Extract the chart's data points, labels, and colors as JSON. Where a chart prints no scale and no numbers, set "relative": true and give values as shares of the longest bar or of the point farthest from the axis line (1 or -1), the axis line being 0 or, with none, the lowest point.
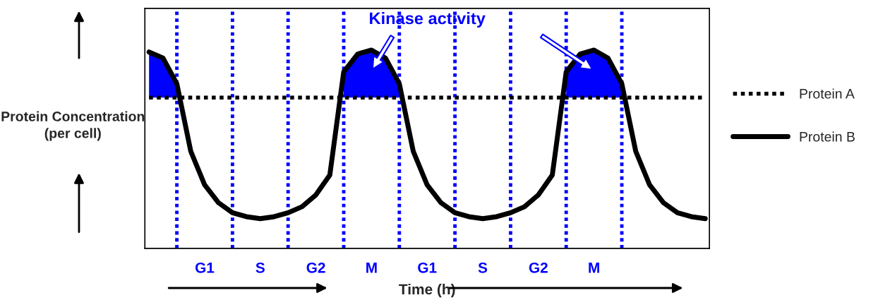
{
  "chart_data": {
    "type": "line",
    "relative": true,
    "xlabel": "Time (h)",
    "ylabel": "Protein Concentration\n(per cell)",
    "categories": [
      null,
      null,
      null,
      null,
      "G1",
      null,
      null,
      null,
      "S",
      null,
      null,
      null,
      "G2",
      null,
      null,
      null,
      "M",
      null,
      null,
      null,
      "G1",
      null,
      null,
      null,
      "S",
      null,
      null,
      null,
      "G2",
      null,
      null,
      null,
      "M",
      null,
      null,
      null,
      null,
      null,
      null,
      null,
      null
    ],
    "series": [
      {
        "name": "Protein A",
        "color": "#000000",
        "line_style": "dotted",
        "values": [
          0.76,
          0.76,
          0.76,
          0.76,
          0.76,
          0.76,
          0.76,
          0.76,
          0.76,
          0.76,
          0.76,
          0.76,
          0.76,
          0.76,
          0.76,
          0.76,
          0.76,
          0.76,
          0.76,
          0.76,
          0.76,
          0.76,
          0.76,
          0.76,
          0.76,
          0.76,
          0.76,
          0.76,
          0.76,
          0.76,
          0.76,
          0.76,
          0.76,
          0.76,
          0.76,
          0.76,
          0.76,
          0.76,
          0.76,
          0.76,
          0.76
        ]
      },
      {
        "name": "Protein B",
        "color": "#000000",
        "line_style": "solid",
        "values": [
          0.99,
          0.96,
          0.83,
          0.49,
          0.32,
          0.23,
          0.18,
          0.16,
          0.15,
          0.16,
          0.18,
          0.21,
          0.27,
          0.37,
          0.89,
          0.98,
          1.0,
          0.96,
          0.83,
          0.49,
          0.32,
          0.23,
          0.18,
          0.16,
          0.15,
          0.16,
          0.18,
          0.21,
          0.27,
          0.37,
          0.89,
          0.98,
          1.0,
          0.96,
          0.83,
          0.49,
          0.32,
          0.23,
          0.18,
          0.16,
          0.15
        ]
      },
      {
        "type": "area",
        "color": "#0000ff",
        "values": [
          0.99,
          0.96,
          0.83,
          null,
          null,
          null,
          null,
          null,
          null,
          null,
          null,
          null,
          null,
          null,
          0.89,
          0.98,
          1.0,
          0.96,
          0.83,
          null,
          null,
          null,
          null,
          null,
          null,
          null,
          null,
          null,
          null,
          null,
          0.89,
          0.98,
          1.0,
          0.96,
          0.83,
          null,
          null,
          null,
          null,
          null,
          null
        ]
      }
    ],
    "annotations": [
      "Kinase activity"
    ],
    "legend": "right",
    "marker": "none"
  }
}
